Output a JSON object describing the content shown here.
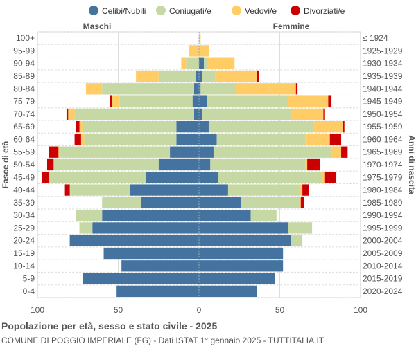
{
  "chart_data": {
    "type": "bar",
    "orientation": "horizontal-pyramid",
    "title": "Popolazione per età, sesso e stato civile - 2025",
    "subtitle": "COMUNE DI POGGIO IMPERIALE (FG) - Dati ISTAT 1° gennaio 2025 - TUTTITALIA.IT",
    "left_label": "Maschi",
    "right_label": "Femmine",
    "ylabel_left": "Fasce di età",
    "ylabel_right": "Anni di nascita",
    "xlim": [
      -100,
      100
    ],
    "xticks": [
      "100",
      "50",
      "0",
      "50",
      "100"
    ],
    "xtick_values": [
      -100,
      -50,
      0,
      50,
      100
    ],
    "legend": [
      {
        "name": "Celibi/Nubili",
        "color": "#44739f"
      },
      {
        "name": "Coniugati/e",
        "color": "#c6d9a5"
      },
      {
        "name": "Vedovi/e",
        "color": "#ffcc66"
      },
      {
        "name": "Divorziati/e",
        "color": "#cc0000"
      }
    ],
    "age_groups": [
      "100+",
      "95-99",
      "90-94",
      "85-89",
      "80-84",
      "75-79",
      "70-74",
      "65-69",
      "60-64",
      "55-59",
      "50-54",
      "45-49",
      "40-44",
      "35-39",
      "30-34",
      "25-29",
      "20-24",
      "15-19",
      "10-14",
      "5-9",
      "0-4"
    ],
    "birth_years": [
      "≤ 1924",
      "1925-1929",
      "1930-1934",
      "1935-1939",
      "1940-1944",
      "1945-1949",
      "1950-1954",
      "1955-1959",
      "1960-1964",
      "1965-1969",
      "1970-1974",
      "1975-1979",
      "1980-1984",
      "1985-1989",
      "1990-1994",
      "1995-1999",
      "2000-2004",
      "2005-2009",
      "2010-2014",
      "2015-2019",
      "2020-2024"
    ],
    "males": {
      "celibi": [
        0,
        0,
        0,
        2,
        3,
        4,
        3,
        14,
        14,
        18,
        25,
        33,
        43,
        36,
        60,
        66,
        80,
        59,
        48,
        72,
        51
      ],
      "coniugati": [
        0,
        0,
        8,
        23,
        57,
        45,
        74,
        58,
        57,
        68,
        65,
        60,
        37,
        24,
        16,
        8,
        0,
        0,
        0,
        0,
        0
      ],
      "vedovi": [
        0,
        6,
        3,
        14,
        10,
        5,
        4,
        2,
        2,
        1,
        0,
        0,
        0,
        0,
        0,
        0,
        0,
        0,
        0,
        0,
        0
      ],
      "divorziati": [
        0,
        0,
        0,
        0,
        0,
        1,
        1,
        2,
        4,
        6,
        4,
        4,
        3,
        0,
        0,
        0,
        0,
        0,
        0,
        0,
        0
      ]
    },
    "females": {
      "nubili": [
        0,
        0,
        3,
        2,
        1,
        5,
        2,
        6,
        11,
        9,
        7,
        12,
        18,
        26,
        32,
        55,
        57,
        52,
        52,
        47,
        36
      ],
      "coniugate": [
        0,
        0,
        2,
        8,
        22,
        50,
        55,
        65,
        55,
        73,
        59,
        64,
        44,
        36,
        16,
        15,
        7,
        0,
        0,
        0,
        0
      ],
      "vedove": [
        1,
        6,
        17,
        26,
        37,
        25,
        20,
        18,
        15,
        6,
        1,
        2,
        2,
        1,
        0,
        0,
        0,
        0,
        0,
        0,
        0
      ],
      "divorziate": [
        0,
        0,
        0,
        1,
        1,
        2,
        1,
        1,
        7,
        4,
        8,
        7,
        4,
        2,
        0,
        0,
        0,
        0,
        0,
        0,
        0
      ]
    }
  }
}
